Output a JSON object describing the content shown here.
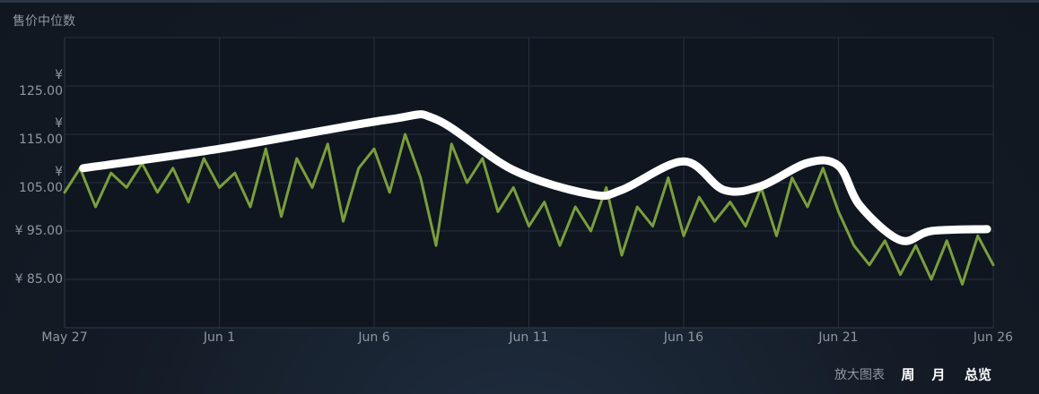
{
  "chart_data": {
    "type": "line",
    "title": "售价中位数",
    "x": [
      0,
      0.5,
      1,
      1.5,
      2,
      2.5,
      3,
      3.5,
      4,
      4.5,
      5,
      5.5,
      6,
      6.5,
      7,
      7.5,
      8,
      8.5,
      9,
      9.5,
      10,
      10.5,
      11,
      11.5,
      12,
      12.5,
      13,
      13.5,
      14,
      14.5,
      15,
      15.5,
      16,
      16.5,
      17,
      17.5,
      18,
      18.5,
      19,
      19.5,
      20,
      20.5,
      21,
      21.5,
      22,
      22.5,
      23,
      23.5,
      24,
      24.5,
      25,
      25.5,
      26,
      26.5,
      27,
      27.5,
      28,
      28.5,
      29,
      29.5,
      30
    ],
    "series": [
      {
        "color": "#7b9e3c",
        "width": 3,
        "values": [
          103,
          108,
          100,
          107,
          104,
          109,
          103,
          108,
          101,
          110,
          104,
          107,
          100,
          112,
          98,
          110,
          104,
          113,
          97,
          108,
          112,
          103,
          115,
          106,
          92,
          113,
          105,
          110,
          99,
          104,
          96,
          101,
          92,
          100,
          95,
          104,
          90,
          100,
          96,
          106,
          94,
          102,
          97,
          101,
          96,
          104,
          94,
          106,
          100,
          108,
          99,
          92,
          88,
          93,
          86,
          92,
          85,
          93,
          84,
          94,
          88
        ]
      },
      {
        "color": "#ffffff",
        "width": 9,
        "x": [
          0.6,
          5,
          10.5,
          12,
          14.5,
          17,
          18,
          20,
          21.3,
          22.5,
          24,
          25,
          25.7,
          27,
          28,
          29.8
        ],
        "values": [
          108.0,
          112.0,
          118.1,
          118.1,
          107.6,
          102.6,
          103.5,
          109.4,
          103.5,
          104.3,
          109.1,
          108.5,
          100.2,
          93.1,
          95.0,
          95.4
        ]
      }
    ],
    "xlim": [
      0,
      30
    ],
    "xticks": [
      {
        "value": 0,
        "label": "May 27"
      },
      {
        "value": 5,
        "label": "Jun 1"
      },
      {
        "value": 10,
        "label": "Jun 6"
      },
      {
        "value": 15,
        "label": "Jun 11"
      },
      {
        "value": 20,
        "label": "Jun 16"
      },
      {
        "value": 25,
        "label": "Jun 21"
      },
      {
        "value": 30,
        "label": "Jun 26"
      }
    ],
    "ylim": [
      75,
      135
    ],
    "yticks": [
      {
        "value": 85,
        "label": "¥ 85.00"
      },
      {
        "value": 95,
        "label": "¥ 95.00"
      },
      {
        "value": 105,
        "label": "¥ 105.00"
      },
      {
        "value": 115,
        "label": "¥ 115.00"
      },
      {
        "value": 125,
        "label": "¥ 125.00"
      }
    ],
    "grid": true
  },
  "controls": {
    "zoom_label": "放大图表",
    "buttons": [
      "周",
      "月",
      "总览"
    ]
  }
}
